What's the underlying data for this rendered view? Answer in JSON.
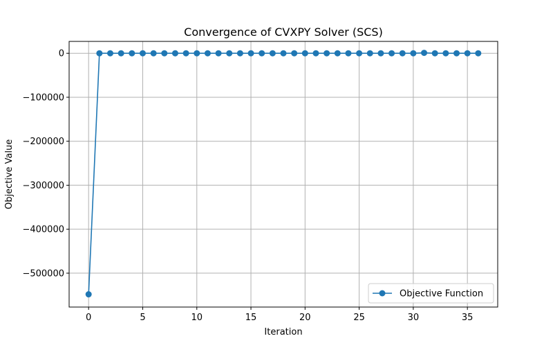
{
  "chart_data": {
    "type": "line",
    "title": "Convergence of CVXPY Solver (SCS)",
    "xlabel": "Iteration",
    "ylabel": "Objective Value",
    "xlim": [
      -1.8,
      37.8
    ],
    "ylim": [
      -577000,
      27000
    ],
    "xticks": [
      0,
      5,
      10,
      15,
      20,
      25,
      30,
      35
    ],
    "yticks": [
      0,
      -100000,
      -200000,
      -300000,
      -400000,
      -500000
    ],
    "xtick_labels": [
      "0",
      "5",
      "10",
      "15",
      "20",
      "25",
      "30",
      "35"
    ],
    "ytick_labels": [
      "0",
      "−100000",
      "−200000",
      "−300000",
      "−400000",
      "−500000"
    ],
    "grid": true,
    "legend_position": "lower-right",
    "series": [
      {
        "name": "Objective Function",
        "color": "#1f77b4",
        "marker": "circle",
        "x": [
          0,
          1,
          2,
          3,
          4,
          5,
          6,
          7,
          8,
          9,
          10,
          11,
          12,
          13,
          14,
          15,
          16,
          17,
          18,
          19,
          20,
          21,
          22,
          23,
          24,
          25,
          26,
          27,
          28,
          29,
          30,
          31,
          32,
          33,
          34,
          35,
          36
        ],
        "y": [
          -548000,
          0,
          0,
          0,
          0,
          0,
          0,
          0,
          0,
          0,
          0,
          0,
          0,
          0,
          0,
          0,
          0,
          0,
          0,
          0,
          0,
          0,
          0,
          0,
          0,
          0,
          0,
          0,
          0,
          0,
          0,
          1000,
          0,
          0,
          0,
          0,
          0
        ]
      }
    ]
  }
}
